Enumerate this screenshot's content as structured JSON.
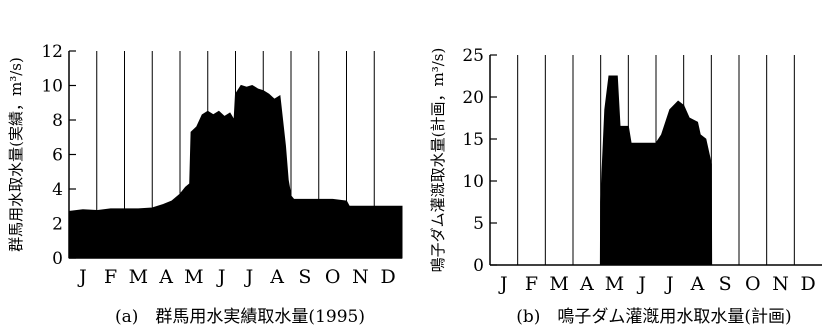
{
  "chart_data": [
    {
      "type": "area",
      "caption": "(a)　群馬用水実績取水量(1995)",
      "ylabel": "群馬用水取水量(実績，m³/s)",
      "xlabel": "",
      "categories": [
        "J",
        "F",
        "M",
        "A",
        "M",
        "J",
        "J",
        "A",
        "S",
        "O",
        "N",
        "D"
      ],
      "ylim": [
        0,
        12
      ],
      "yticks": [
        0,
        2,
        4,
        6,
        8,
        10,
        12
      ],
      "grid": "vertical month separators",
      "series": [
        {
          "x_unit": "month (0 = start of January, 12 = end of December)",
          "x": [
            0,
            0.5,
            1.0,
            1.5,
            2.0,
            2.5,
            3.0,
            3.4,
            3.7,
            4.0,
            4.2,
            4.35,
            4.4,
            4.6,
            4.8,
            5.0,
            5.2,
            5.4,
            5.6,
            5.8,
            5.95,
            6.0,
            6.2,
            6.4,
            6.6,
            6.8,
            7.0,
            7.2,
            7.4,
            7.6,
            7.8,
            7.9,
            8.0,
            8.1,
            8.5,
            9.0,
            9.5,
            10.0,
            10.1,
            10.5,
            11.0,
            11.5,
            12.0
          ],
          "y": [
            2.7,
            2.8,
            2.75,
            2.85,
            2.85,
            2.85,
            2.9,
            3.1,
            3.3,
            3.7,
            4.1,
            4.3,
            7.3,
            7.6,
            8.3,
            8.5,
            8.3,
            8.5,
            8.2,
            8.4,
            8.0,
            9.5,
            10.0,
            9.9,
            10.0,
            9.8,
            9.7,
            9.5,
            9.2,
            9.4,
            6.5,
            4.5,
            3.6,
            3.4,
            3.4,
            3.4,
            3.4,
            3.3,
            3.0,
            3.0,
            3.0,
            3.0,
            3.0
          ]
        }
      ]
    },
    {
      "type": "area",
      "caption": "(b)　鳴子ダム灌漑用水取水量(計画)",
      "ylabel": "鳴子ダム灌漑取水量(計画，m³/s)",
      "xlabel": "",
      "categories": [
        "J",
        "F",
        "M",
        "A",
        "M",
        "J",
        "J",
        "A",
        "S",
        "O",
        "N",
        "D"
      ],
      "ylim": [
        0,
        25
      ],
      "yticks": [
        0,
        5,
        10,
        15,
        20,
        25
      ],
      "grid": "vertical month separators",
      "series": [
        {
          "x_unit": "month (0 = start of January, 12 = end of December)",
          "x": [
            0,
            3.99,
            4.0,
            4.15,
            4.3,
            4.6,
            4.7,
            5.0,
            5.1,
            6.0,
            6.2,
            6.5,
            6.8,
            7.0,
            7.2,
            7.5,
            7.6,
            7.8,
            8.0,
            8.01,
            12.0
          ],
          "y": [
            0,
            0,
            7.5,
            18.5,
            22.5,
            22.5,
            16.5,
            16.5,
            14.5,
            14.5,
            15.5,
            18.5,
            19.5,
            19.0,
            17.5,
            17.0,
            15.5,
            15.0,
            12.0,
            0,
            0
          ]
        }
      ]
    }
  ]
}
